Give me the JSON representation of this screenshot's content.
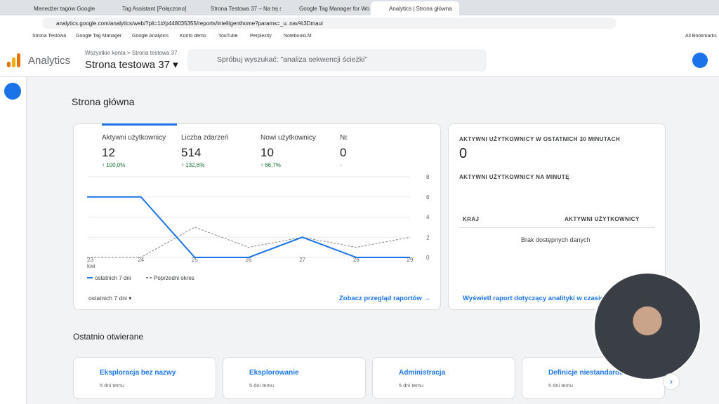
{
  "browser": {
    "tabs": [
      "Menedżer tagów Google",
      "Tag Assistant [Połączono]",
      "Strona Testowa 37 – Na tej stro",
      "Google Tag Manager for Word",
      "Analytics | Strona główna"
    ],
    "url": "analytics.google.com/analytics/web/?pli=1#/p448035355/reports/intelligenthome?params=_u..nav%3Dmaui",
    "bookmarks": [
      "Strona Testowa",
      "Google Tag Manager",
      "Google Analytics",
      "Konto demo",
      "YouTube",
      "Perplexity",
      "NotebookLM"
    ],
    "all_bookmarks": "All Bookmarks"
  },
  "header": {
    "app_name": "Analytics",
    "breadcrumb": [
      "Wszystkie konta",
      "Strona testowa 37"
    ],
    "property": "Strona testowa 37",
    "search_placeholder": "Spróbuj wyszukać: \"analiza sekwencji ścieżki\""
  },
  "page_title": "Strona główna",
  "metrics": [
    {
      "label": "Aktywni użytkownicy",
      "value": "12",
      "change": "↑ 100,0%"
    },
    {
      "label": "Liczba zdarzeń",
      "value": "514",
      "change": "↑ 132,6%"
    },
    {
      "label": "Nowi użytkownicy",
      "value": "10",
      "change": "↑ 66,7%"
    },
    {
      "label": "Na",
      "value": "0",
      "change": "-"
    }
  ],
  "chart_data": {
    "type": "line",
    "categories": [
      "23",
      "24",
      "25",
      "26",
      "27",
      "28",
      "29"
    ],
    "month_label": "kwi",
    "series": [
      {
        "name": "ostatnich 7 dni",
        "color": "#1a73e8",
        "values": [
          6,
          6,
          0,
          0,
          2,
          0,
          0
        ]
      },
      {
        "name": "Poprzedni okres",
        "color": "#80868b",
        "values": [
          0,
          0,
          3,
          1,
          2,
          1,
          2
        ]
      }
    ],
    "ylim": [
      0,
      8
    ],
    "yticks": [
      0,
      2,
      4,
      6,
      8
    ],
    "grid": true
  },
  "overview": {
    "date_range": "ostatnich 7 dni",
    "link": "Zobacz przegląd raportów"
  },
  "realtime": {
    "title": "AKTYWNI UŻYTKOWNICY W OSTATNICH 30 MINUTACH",
    "value": "0",
    "per_minute": "AKTYWNI UŻYTKOWNICY NA MINUTĘ",
    "columns": [
      "KRAJ",
      "AKTYWNI UŻYTKOWNICY"
    ],
    "empty": "Brak dostępnych danych",
    "link": "Wyświetl raport dotyczący analityki w czasie"
  },
  "recent": {
    "title": "Ostatnio otwierane",
    "items": [
      {
        "title": "Eksploracja bez nazwy",
        "time": "5 dni temu"
      },
      {
        "title": "Eksplorowanie",
        "time": "5 dni temu"
      },
      {
        "title": "Administracja",
        "time": "5 dni temu"
      },
      {
        "title": "Definicje niestandardowe",
        "time": "5 dni temu"
      }
    ]
  }
}
